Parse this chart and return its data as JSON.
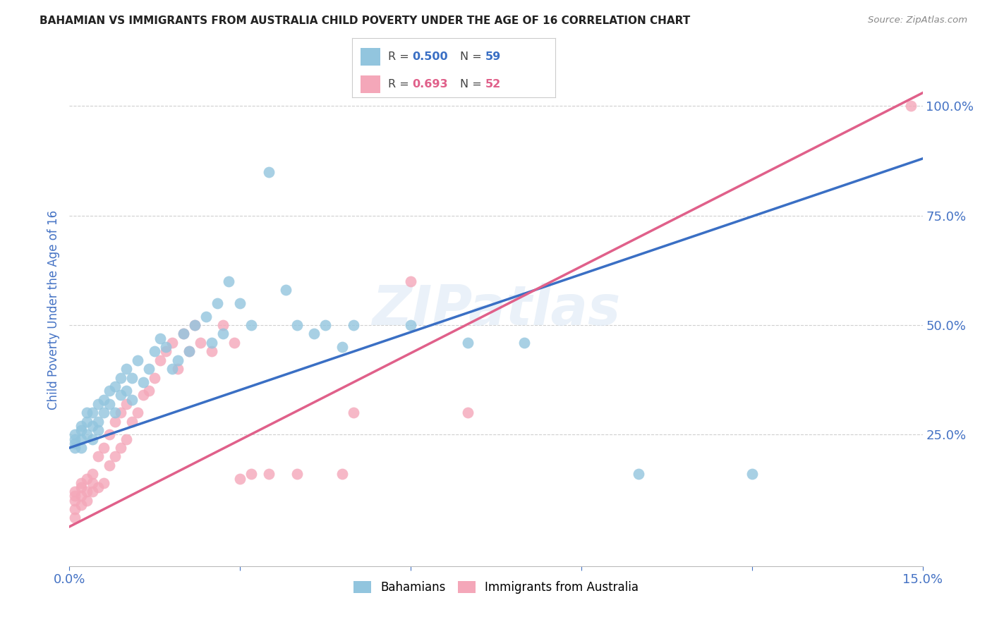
{
  "title": "BAHAMIAN VS IMMIGRANTS FROM AUSTRALIA CHILD POVERTY UNDER THE AGE OF 16 CORRELATION CHART",
  "source": "Source: ZipAtlas.com",
  "ylabel": "Child Poverty Under the Age of 16",
  "legend_label1": "Bahamians",
  "legend_label2": "Immigrants from Australia",
  "watermark": "ZIPatlas",
  "blue_color": "#92c5de",
  "pink_color": "#f4a7b9",
  "blue_line_color": "#3a6fc4",
  "pink_line_color": "#e0608a",
  "blue_R": "0.500",
  "blue_N": "59",
  "pink_R": "0.693",
  "pink_N": "52",
  "blue_line_x": [
    0.0,
    0.15
  ],
  "blue_line_y": [
    0.22,
    0.88
  ],
  "pink_line_x": [
    0.0,
    0.15
  ],
  "pink_line_y": [
    0.04,
    1.03
  ],
  "xlim": [
    0.0,
    0.15
  ],
  "ylim": [
    -0.05,
    1.12
  ],
  "xticks": [
    0.0,
    0.03,
    0.06,
    0.09,
    0.12,
    0.15
  ],
  "xtick_labels": [
    "0.0%",
    "",
    "",
    "",
    "",
    "15.0%"
  ],
  "ytick_positions": [
    0.25,
    0.5,
    0.75,
    1.0
  ],
  "ytick_labels": [
    "25.0%",
    "50.0%",
    "75.0%",
    "100.0%"
  ],
  "grid_color": "#d0d0d0",
  "background_color": "#ffffff",
  "title_color": "#222222",
  "axis_label_color": "#4472c4",
  "tick_color": "#4472c4",
  "blue_x": [
    0.001,
    0.001,
    0.001,
    0.001,
    0.002,
    0.002,
    0.002,
    0.002,
    0.003,
    0.003,
    0.003,
    0.004,
    0.004,
    0.004,
    0.005,
    0.005,
    0.005,
    0.006,
    0.006,
    0.007,
    0.007,
    0.008,
    0.008,
    0.009,
    0.009,
    0.01,
    0.01,
    0.011,
    0.011,
    0.012,
    0.013,
    0.014,
    0.015,
    0.016,
    0.017,
    0.018,
    0.019,
    0.02,
    0.021,
    0.022,
    0.024,
    0.025,
    0.026,
    0.027,
    0.028,
    0.03,
    0.032,
    0.035,
    0.038,
    0.04,
    0.043,
    0.045,
    0.048,
    0.05,
    0.06,
    0.07,
    0.08,
    0.1,
    0.12
  ],
  "blue_y": [
    0.22,
    0.23,
    0.24,
    0.25,
    0.22,
    0.24,
    0.26,
    0.27,
    0.25,
    0.28,
    0.3,
    0.24,
    0.27,
    0.3,
    0.26,
    0.28,
    0.32,
    0.3,
    0.33,
    0.32,
    0.35,
    0.3,
    0.36,
    0.34,
    0.38,
    0.35,
    0.4,
    0.33,
    0.38,
    0.42,
    0.37,
    0.4,
    0.44,
    0.47,
    0.45,
    0.4,
    0.42,
    0.48,
    0.44,
    0.5,
    0.52,
    0.46,
    0.55,
    0.48,
    0.6,
    0.55,
    0.5,
    0.85,
    0.58,
    0.5,
    0.48,
    0.5,
    0.45,
    0.5,
    0.5,
    0.46,
    0.46,
    0.16,
    0.16
  ],
  "pink_x": [
    0.001,
    0.001,
    0.001,
    0.001,
    0.001,
    0.002,
    0.002,
    0.002,
    0.002,
    0.003,
    0.003,
    0.003,
    0.004,
    0.004,
    0.004,
    0.005,
    0.005,
    0.006,
    0.006,
    0.007,
    0.007,
    0.008,
    0.008,
    0.009,
    0.009,
    0.01,
    0.01,
    0.011,
    0.012,
    0.013,
    0.014,
    0.015,
    0.016,
    0.017,
    0.018,
    0.019,
    0.02,
    0.021,
    0.022,
    0.023,
    0.025,
    0.027,
    0.029,
    0.03,
    0.032,
    0.035,
    0.04,
    0.048,
    0.05,
    0.06,
    0.07,
    0.148
  ],
  "pink_y": [
    0.06,
    0.08,
    0.1,
    0.11,
    0.12,
    0.09,
    0.11,
    0.13,
    0.14,
    0.1,
    0.12,
    0.15,
    0.12,
    0.14,
    0.16,
    0.13,
    0.2,
    0.14,
    0.22,
    0.18,
    0.25,
    0.2,
    0.28,
    0.22,
    0.3,
    0.24,
    0.32,
    0.28,
    0.3,
    0.34,
    0.35,
    0.38,
    0.42,
    0.44,
    0.46,
    0.4,
    0.48,
    0.44,
    0.5,
    0.46,
    0.44,
    0.5,
    0.46,
    0.15,
    0.16,
    0.16,
    0.16,
    0.16,
    0.3,
    0.6,
    0.3,
    1.0
  ]
}
